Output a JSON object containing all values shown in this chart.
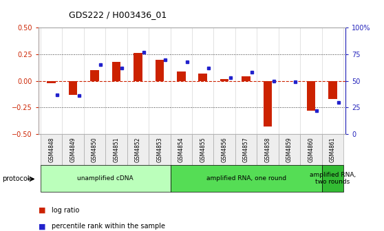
{
  "title": "GDS222 / H003436_01",
  "samples": [
    "GSM4848",
    "GSM4849",
    "GSM4850",
    "GSM4851",
    "GSM4852",
    "GSM4853",
    "GSM4854",
    "GSM4855",
    "GSM4856",
    "GSM4857",
    "GSM4858",
    "GSM4859",
    "GSM4860",
    "GSM4861"
  ],
  "log_ratio": [
    -0.02,
    -0.13,
    0.1,
    0.18,
    0.26,
    0.2,
    0.09,
    0.07,
    0.02,
    0.04,
    -0.43,
    -0.005,
    -0.28,
    -0.17
  ],
  "percentile_rank": [
    37,
    36,
    65,
    62,
    77,
    70,
    68,
    62,
    53,
    58,
    50,
    49,
    22,
    30
  ],
  "protocol_groups": [
    {
      "label": "unamplified cDNA",
      "start": 0,
      "end": 5,
      "color": "#bbffbb"
    },
    {
      "label": "amplified RNA, one round",
      "start": 6,
      "end": 12,
      "color": "#55dd55"
    },
    {
      "label": "amplified RNA,\ntwo rounds",
      "start": 13,
      "end": 13,
      "color": "#33bb33"
    }
  ],
  "ylim_left": [
    -0.5,
    0.5
  ],
  "ylim_right": [
    0,
    100
  ],
  "bar_color": "#cc2200",
  "dot_color": "#2222cc",
  "hline_color": "#cc2200",
  "dotted_color": "#333333",
  "background_color": "#ffffff",
  "left_axis_color": "#cc2200",
  "right_axis_color": "#2222bb"
}
